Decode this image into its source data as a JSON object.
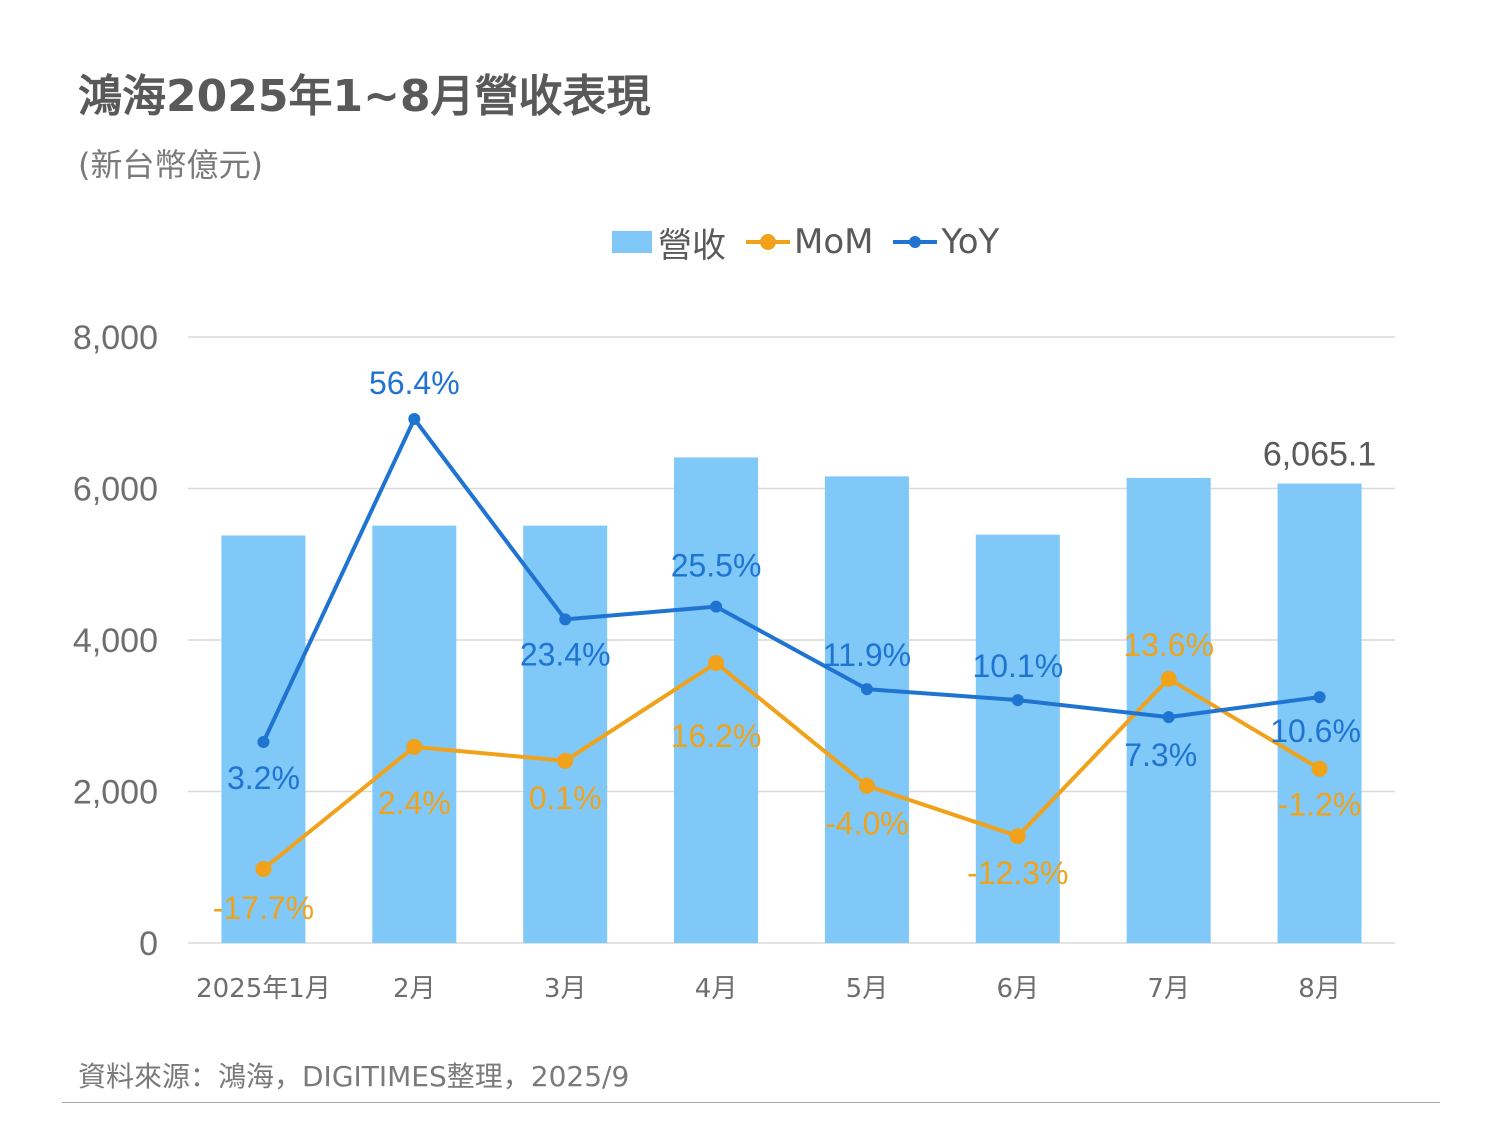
{
  "title": "鴻海2025年1~8月營收表現",
  "subtitle": "(新台幣億元)",
  "legend": {
    "revenue": "營收",
    "mom": "MoM",
    "yoy": "YoY"
  },
  "source": "資料來源：鴻海，DIGITIMES整理，2025/9",
  "colors": {
    "revenue": "#7fc8f8",
    "mom": "#f0a21a",
    "yoy": "#1f74d2",
    "grid": "#d9d9d9",
    "axis_text": "#6e6e6e"
  },
  "chart_data": {
    "type": "bar",
    "categories": [
      "2025年1月",
      "2月",
      "3月",
      "4月",
      "5月",
      "6月",
      "7月",
      "8月"
    ],
    "ylim": [
      0,
      8000
    ],
    "yticks": [
      "0",
      "2,000",
      "4,000",
      "6,000",
      "8,000"
    ],
    "ytick_values": [
      0,
      2000,
      4000,
      6000,
      8000
    ],
    "grid": true,
    "legend_position": "top",
    "series": [
      {
        "name": "營收",
        "type": "bar",
        "values": [
          5380,
          5510,
          5510,
          6410,
          6160,
          5390,
          6140,
          6065.1
        ],
        "visible_value_labels": {
          "7": "6,065.1"
        }
      },
      {
        "name": "MoM",
        "type": "line",
        "values": [
          -17.7,
          2.4,
          0.1,
          16.2,
          -4.0,
          -12.3,
          13.6,
          -1.2
        ],
        "labels": [
          "-17.7%",
          "2.4%",
          "0.1%",
          "16.2%",
          "-4.0%",
          "-12.3%",
          "13.6%",
          "-1.2%"
        ]
      },
      {
        "name": "YoY",
        "type": "line",
        "values": [
          3.2,
          56.4,
          23.4,
          25.5,
          11.9,
          10.1,
          7.3,
          10.6
        ],
        "labels": [
          "3.2%",
          "56.4%",
          "23.4%",
          "25.5%",
          "11.9%",
          "10.1%",
          "7.3%",
          "10.6%"
        ]
      }
    ]
  }
}
